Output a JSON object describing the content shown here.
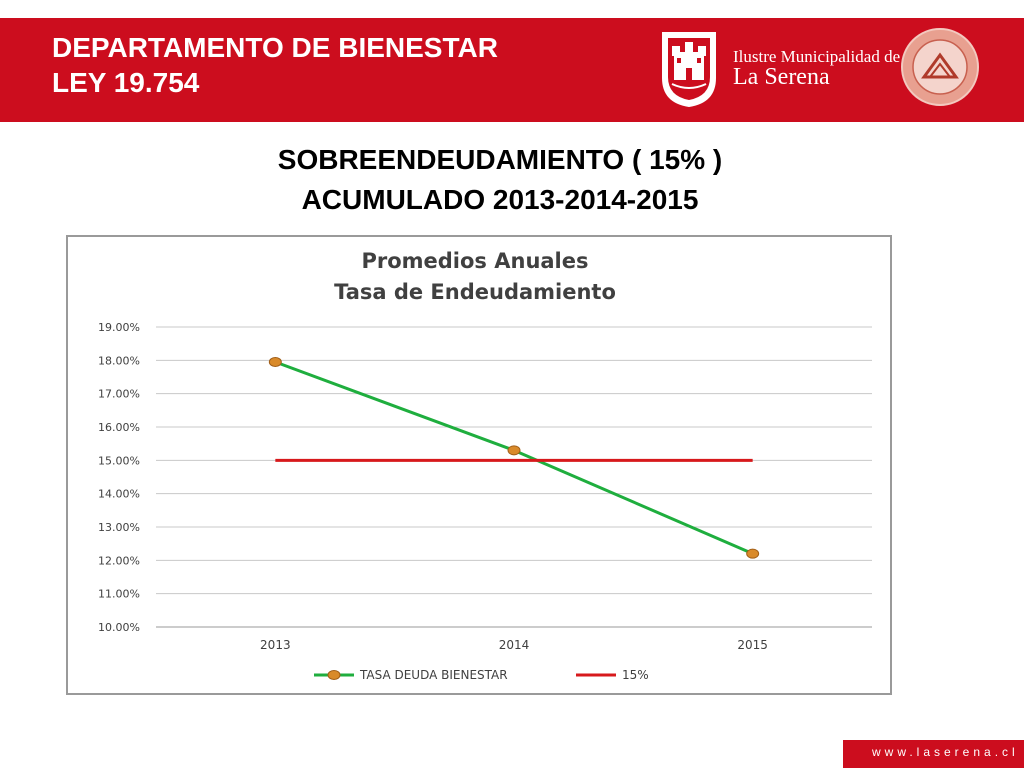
{
  "header": {
    "title_line1": "DEPARTAMENTO DE BIENESTAR",
    "title_line2": "LEY 19.754",
    "muni_line1": "Ilustre Municipalidad de",
    "muni_line2": "La Serena",
    "colors": {
      "banner": "#cc0d1e",
      "text": "#ffffff"
    }
  },
  "slide": {
    "title_line1": "SOBREENDEUDAMIENTO ( 15% )",
    "title_line2": "ACUMULADO 2013-2014-2015"
  },
  "footer": {
    "url": "www.laserena.cl"
  },
  "chart_data": {
    "type": "line",
    "title_line1": "Promedios Anuales",
    "title_line2": "Tasa de Endeudamiento",
    "categories": [
      "2013",
      "2014",
      "2015"
    ],
    "ylim": [
      0.1,
      0.19
    ],
    "yticks": [
      "19.00%",
      "18.00%",
      "17.00%",
      "16.00%",
      "15.00%",
      "14.00%",
      "13.00%",
      "12.00%",
      "11.00%",
      "10.00%"
    ],
    "grid": true,
    "legend_position": "bottom",
    "series": [
      {
        "name": "TASA DEUDA BIENESTAR",
        "values": [
          0.1795,
          0.153,
          0.122
        ],
        "color": "#1fae3e",
        "marker": "circle",
        "marker_color": "#d98a2a"
      },
      {
        "name": "15%",
        "values": [
          0.15,
          0.15,
          0.15
        ],
        "color": "#d7191c",
        "marker": "none"
      }
    ]
  }
}
